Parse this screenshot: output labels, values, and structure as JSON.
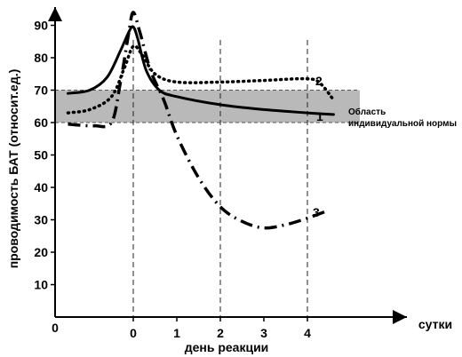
{
  "chart_data": {
    "type": "line",
    "ylabel": "проводимость БАТ (относит.ед.)",
    "xlabel": "день реакции",
    "x_unit": "сутки",
    "origin_label": "0",
    "x_range": [
      -1.8,
      4.8
    ],
    "ylim": [
      0,
      95
    ],
    "x_ticks": [
      "0",
      "1",
      "2",
      "3",
      "4"
    ],
    "x_tick_values": [
      0,
      1,
      2,
      3,
      4
    ],
    "y_ticks": [
      "10",
      "20",
      "30",
      "40",
      "50",
      "60",
      "70",
      "80",
      "90"
    ],
    "y_tick_values": [
      10,
      20,
      30,
      40,
      50,
      60,
      70,
      80,
      90
    ],
    "norm_band": {
      "from": 60,
      "to": 70,
      "label_lines": [
        "Область",
        "индивидуальной нормы"
      ]
    },
    "series": [
      {
        "name": "1",
        "style": "solid",
        "x": [
          -1.5,
          -1.0,
          -0.6,
          -0.3,
          -0.1,
          0.0,
          0.1,
          0.3,
          0.6,
          1.0,
          2.0,
          3.0,
          4.0,
          4.6
        ],
        "y": [
          69,
          70,
          74,
          82,
          88,
          89.5,
          86,
          76,
          70,
          68,
          65.5,
          64,
          63,
          62.5
        ]
      },
      {
        "name": "2",
        "style": "dotted",
        "x": [
          -1.5,
          -1.0,
          -0.5,
          -0.2,
          0.0,
          0.2,
          0.5,
          1.0,
          2.0,
          3.0,
          4.0,
          4.3,
          4.6
        ],
        "y": [
          63,
          64,
          68,
          77,
          83.5,
          81,
          75,
          72.5,
          72.5,
          73,
          73.5,
          72,
          67
        ]
      },
      {
        "name": "3",
        "style": "dash-dot",
        "x": [
          -1.5,
          -0.9,
          -0.5,
          -0.3,
          -0.1,
          0.0,
          0.15,
          0.4,
          0.7,
          1.0,
          1.5,
          2.0,
          2.5,
          3.0,
          3.5,
          4.0,
          4.5
        ],
        "y": [
          59.5,
          59,
          60,
          72,
          88,
          94,
          88,
          76,
          67,
          56,
          43,
          34,
          29.5,
          27.5,
          28.5,
          30.5,
          33
        ]
      }
    ]
  }
}
